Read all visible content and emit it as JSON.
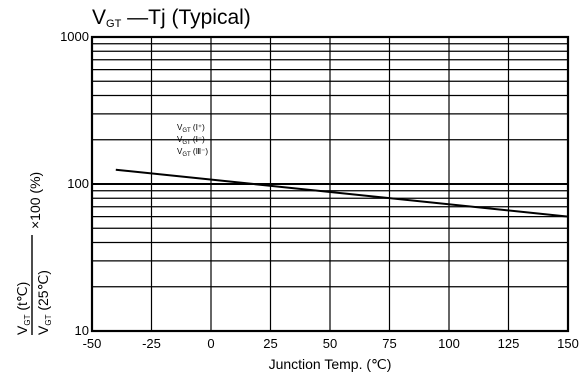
{
  "chart_data": {
    "type": "line",
    "title": {
      "main": "V",
      "sub": "GT",
      "rest": " —Tj (Typical)"
    },
    "xlabel": "Junction Temp. (℃)",
    "ylabel": {
      "numerator": "V",
      "numerator_sub": "GT",
      "numerator_rest": " (t℃)",
      "denominator": "V",
      "denominator_sub": "GT",
      "denominator_rest": " (25℃)",
      "suffix": "×100 (%)"
    },
    "x_ticks": [
      "-50",
      "-25",
      "0",
      "25",
      "50",
      "75",
      "100",
      "125",
      "150"
    ],
    "y_ticks": [
      "10",
      "100",
      "1000"
    ],
    "xlim": [
      -50,
      150
    ],
    "ylim": [
      10,
      1000
    ],
    "y_scale": "log",
    "grid": true,
    "legend": [
      {
        "main": "V",
        "sub": "GT",
        "rest": " (Ⅰ⁺)"
      },
      {
        "main": "V",
        "sub": "GT",
        "rest": " (Ⅰ⁻)"
      },
      {
        "main": "V",
        "sub": "GT",
        "rest": " (Ⅲ⁻)"
      }
    ],
    "series": [
      {
        "x": [
          -40,
          150
        ],
        "y": [
          125,
          60
        ]
      }
    ]
  }
}
